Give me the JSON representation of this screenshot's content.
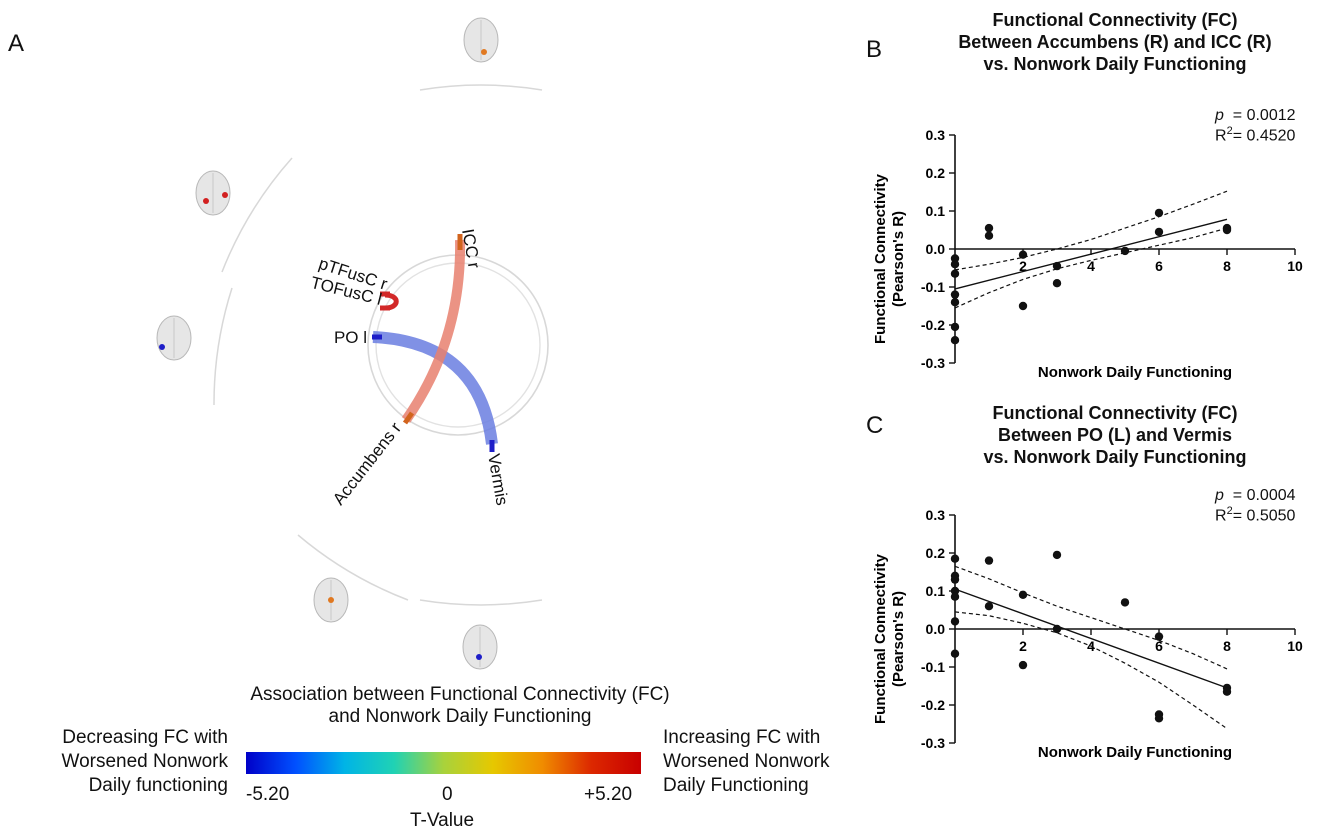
{
  "panels": {
    "a": "A",
    "b": "B",
    "c": "C"
  },
  "connectogram": {
    "nodes": [
      "ICC r",
      "pTFusC r",
      "TOFusC l",
      "PO l",
      "Accumbens r",
      "Vermis"
    ],
    "colorbar": {
      "title_line1": "Association between Functional Connectivity (FC)",
      "title_line2": "and Nonwork Daily Functioning",
      "left_line1": "Decreasing FC with",
      "left_line2": "Worsened Nonwork",
      "left_line3": "Daily functioning",
      "right_line1": "Increasing FC with",
      "right_line2": "Worsened Nonwork",
      "right_line3": "Daily Functioning",
      "min_label": "-5.20",
      "mid_label": "0",
      "max_label": "+5.20",
      "axis_label": "T-Value",
      "colors": [
        "#0000c8",
        "#0050ff",
        "#00b4e6",
        "#20d2b4",
        "#a8d23c",
        "#e6c800",
        "#f08c00",
        "#dc2800",
        "#c80000"
      ]
    },
    "edge_colors": {
      "positive": "#e8806e",
      "negative": "#6a7ee0",
      "node_positive": "#d2641e",
      "node_negative": "#1e1ec8",
      "self_loop": "#d22828"
    }
  },
  "chart_data": [
    {
      "type": "scatter",
      "title_line1": "Functional Connectivity (FC)",
      "title_line2": "Between Accumbens (R) and ICC (R)",
      "title_line3": "vs. Nonwork Daily Functioning",
      "p_prefix": "p",
      "p_value": "= 0.0012",
      "r2_prefix": "R",
      "r2_sup": "2",
      "r2_value": "= 0.4520",
      "xlabel": "Nonwork Daily Functioning",
      "ylabel_line1": "Functional Connectivity",
      "ylabel_line2": "(Pearson's R)",
      "xlim": [
        0,
        10
      ],
      "ylim": [
        -0.3,
        0.3
      ],
      "xticks": [
        2,
        4,
        6,
        8,
        10
      ],
      "yticks": [
        0.3,
        0.2,
        0.1,
        0.0,
        -0.1,
        -0.2,
        -0.3
      ],
      "points": [
        {
          "x": 0,
          "y": -0.025
        },
        {
          "x": 0,
          "y": -0.04
        },
        {
          "x": 0,
          "y": -0.065
        },
        {
          "x": 0,
          "y": -0.12
        },
        {
          "x": 0,
          "y": -0.14
        },
        {
          "x": 0,
          "y": -0.205
        },
        {
          "x": 0,
          "y": -0.24
        },
        {
          "x": 1,
          "y": 0.055
        },
        {
          "x": 1,
          "y": 0.035
        },
        {
          "x": 2,
          "y": -0.015
        },
        {
          "x": 2,
          "y": -0.15
        },
        {
          "x": 3,
          "y": -0.045
        },
        {
          "x": 3,
          "y": -0.09
        },
        {
          "x": 5,
          "y": -0.005
        },
        {
          "x": 6,
          "y": 0.095
        },
        {
          "x": 6,
          "y": 0.045
        },
        {
          "x": 8,
          "y": 0.055
        },
        {
          "x": 8,
          "y": 0.05
        }
      ],
      "fit": {
        "x": [
          0,
          8
        ],
        "y": [
          -0.105,
          0.078
        ]
      },
      "ci_upper": {
        "x": [
          0,
          1,
          2,
          3,
          4,
          5,
          6,
          7,
          8
        ],
        "y": [
          -0.055,
          -0.04,
          -0.022,
          0.0,
          0.025,
          0.055,
          0.085,
          0.118,
          0.152
        ]
      },
      "ci_lower": {
        "x": [
          0,
          1,
          2,
          3,
          4,
          5,
          6,
          7,
          8
        ],
        "y": [
          -0.155,
          -0.115,
          -0.08,
          -0.052,
          -0.03,
          -0.01,
          0.01,
          0.03,
          0.055
        ]
      }
    },
    {
      "type": "scatter",
      "title_line1": "Functional Connectivity (FC)",
      "title_line2": "Between PO (L) and Vermis",
      "title_line3": "vs. Nonwork Daily Functioning",
      "p_prefix": "p",
      "p_value": "= 0.0004",
      "r2_prefix": "R",
      "r2_sup": "2",
      "r2_value": "= 0.5050",
      "xlabel": "Nonwork Daily Functioning",
      "ylabel_line1": "Functional Connectivity",
      "ylabel_line2": "(Pearson's R)",
      "xlim": [
        0,
        10
      ],
      "ylim": [
        -0.3,
        0.3
      ],
      "xticks": [
        2,
        4,
        6,
        8,
        10
      ],
      "yticks": [
        0.3,
        0.2,
        0.1,
        0.0,
        -0.1,
        -0.2,
        -0.3
      ],
      "points": [
        {
          "x": 0,
          "y": 0.185
        },
        {
          "x": 0,
          "y": 0.14
        },
        {
          "x": 0,
          "y": 0.13
        },
        {
          "x": 0,
          "y": 0.1
        },
        {
          "x": 0,
          "y": 0.085
        },
        {
          "x": 0,
          "y": 0.02
        },
        {
          "x": 0,
          "y": -0.065
        },
        {
          "x": 1,
          "y": 0.18
        },
        {
          "x": 1,
          "y": 0.06
        },
        {
          "x": 2,
          "y": 0.09
        },
        {
          "x": 2,
          "y": -0.095
        },
        {
          "x": 3,
          "y": 0.195
        },
        {
          "x": 3,
          "y": 0.0
        },
        {
          "x": 5,
          "y": 0.07
        },
        {
          "x": 6,
          "y": -0.02
        },
        {
          "x": 6,
          "y": -0.225
        },
        {
          "x": 6,
          "y": -0.235
        },
        {
          "x": 8,
          "y": -0.155
        },
        {
          "x": 8,
          "y": -0.165
        }
      ],
      "fit": {
        "x": [
          0,
          8
        ],
        "y": [
          0.105,
          -0.155
        ]
      },
      "ci_upper": {
        "x": [
          0,
          1,
          2,
          3,
          4,
          5,
          6,
          7,
          8
        ],
        "y": [
          0.165,
          0.132,
          0.095,
          0.06,
          0.03,
          0.0,
          -0.03,
          -0.065,
          -0.105
        ]
      },
      "ci_lower": {
        "x": [
          0,
          1,
          2,
          3,
          4,
          5,
          6,
          7,
          8
        ],
        "y": [
          0.045,
          0.035,
          0.015,
          -0.01,
          -0.045,
          -0.09,
          -0.14,
          -0.2,
          -0.262
        ]
      }
    }
  ]
}
